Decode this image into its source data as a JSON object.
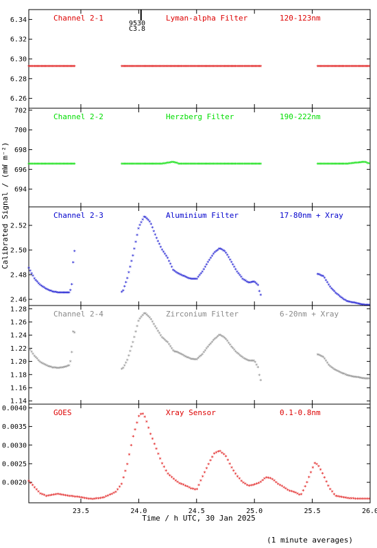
{
  "chart_data": {
    "type": "scatter",
    "xlabel": "Time / h UTC, 30 Jan 2025",
    "ylabel": "Calibrated Signal / (mW m⁻²)",
    "footnote": "(1 minute averages)",
    "xlim": [
      23.05,
      26.0
    ],
    "xticks": [
      "23.5",
      "24.0",
      "24.5",
      "25.0",
      "25.5",
      "26.0"
    ],
    "top_annotation": [
      "9530",
      "C3.8"
    ],
    "panels": [
      {
        "name": "Channel 2-1",
        "filter": "Lyman-alpha Filter",
        "band": "120-123nm",
        "color": "#dd0000",
        "ylim": [
          6.25,
          6.35
        ],
        "yticks": [
          "6.26",
          "6.28",
          "6.30",
          "6.32",
          "6.34"
        ],
        "points": [
          [
            23.05,
            6.292
          ],
          [
            23.2,
            6.292
          ],
          [
            23.35,
            6.292
          ],
          [
            23.43,
            6.292
          ],
          [
            23.86,
            6.292
          ],
          [
            24.2,
            6.292
          ],
          [
            24.5,
            6.292
          ],
          [
            24.8,
            6.292
          ],
          [
            25.05,
            6.292
          ],
          [
            25.55,
            6.292
          ],
          [
            25.8,
            6.292
          ],
          [
            26.0,
            6.292
          ]
        ]
      },
      {
        "name": "Channel 2-2",
        "filter": "Herzberg Filter",
        "band": "190-222nm",
        "color": "#00dd00",
        "ylim": [
          692.2,
          702.2
        ],
        "yticks": [
          "694",
          "696",
          "698",
          "700",
          "702"
        ],
        "points": [
          [
            23.05,
            696.5
          ],
          [
            23.2,
            696.5
          ],
          [
            23.35,
            696.5
          ],
          [
            23.43,
            696.5
          ],
          [
            23.86,
            696.5
          ],
          [
            24.2,
            696.5
          ],
          [
            24.3,
            696.7
          ],
          [
            24.35,
            696.5
          ],
          [
            24.6,
            696.5
          ],
          [
            24.9,
            696.5
          ],
          [
            25.05,
            696.5
          ],
          [
            25.55,
            696.5
          ],
          [
            25.8,
            696.5
          ],
          [
            25.95,
            696.7
          ],
          [
            26.0,
            696.5
          ]
        ]
      },
      {
        "name": "Channel 2-3",
        "filter": "Aluminium Filter",
        "band": "17-80nm + Xray",
        "color": "#0000cc",
        "ylim": [
          2.455,
          2.535
        ],
        "yticks": [
          "2.46",
          "2.48",
          "2.50",
          "2.52"
        ],
        "points": [
          [
            23.05,
            2.485
          ],
          [
            23.1,
            2.476
          ],
          [
            23.15,
            2.471
          ],
          [
            23.2,
            2.468
          ],
          [
            23.25,
            2.466
          ],
          [
            23.3,
            2.465
          ],
          [
            23.35,
            2.465
          ],
          [
            23.4,
            2.465
          ],
          [
            23.42,
            2.469
          ],
          [
            23.43,
            2.483
          ],
          [
            23.44,
            2.499
          ],
          [
            23.86,
            2.465
          ],
          [
            23.9,
            2.476
          ],
          [
            23.95,
            2.495
          ],
          [
            24.0,
            2.518
          ],
          [
            24.05,
            2.527
          ],
          [
            24.1,
            2.522
          ],
          [
            24.15,
            2.51
          ],
          [
            24.2,
            2.5
          ],
          [
            24.25,
            2.493
          ],
          [
            24.3,
            2.483
          ],
          [
            24.35,
            2.48
          ],
          [
            24.4,
            2.478
          ],
          [
            24.45,
            2.476
          ],
          [
            24.5,
            2.476
          ],
          [
            24.55,
            2.482
          ],
          [
            24.6,
            2.49
          ],
          [
            24.65,
            2.497
          ],
          [
            24.7,
            2.501
          ],
          [
            24.75,
            2.498
          ],
          [
            24.8,
            2.49
          ],
          [
            24.85,
            2.482
          ],
          [
            24.9,
            2.476
          ],
          [
            24.95,
            2.473
          ],
          [
            25.0,
            2.474
          ],
          [
            25.03,
            2.471
          ],
          [
            25.05,
            2.463
          ],
          [
            25.55,
            2.48
          ],
          [
            25.6,
            2.478
          ],
          [
            25.65,
            2.47
          ],
          [
            25.7,
            2.465
          ],
          [
            25.75,
            2.461
          ],
          [
            25.8,
            2.458
          ],
          [
            25.85,
            2.457
          ],
          [
            25.9,
            2.456
          ],
          [
            25.95,
            2.455
          ],
          [
            26.0,
            2.455
          ]
        ]
      },
      {
        "name": "Channel 2-4",
        "filter": "Zirconium Filter",
        "band": "6-20nm + Xray",
        "color": "#888888",
        "ylim": [
          1.135,
          1.285
        ],
        "yticks": [
          "1.14",
          "1.16",
          "1.18",
          "1.20",
          "1.22",
          "1.24",
          "1.26",
          "1.28"
        ],
        "points": [
          [
            23.05,
            1.22
          ],
          [
            23.1,
            1.207
          ],
          [
            23.15,
            1.198
          ],
          [
            23.2,
            1.193
          ],
          [
            23.25,
            1.19
          ],
          [
            23.3,
            1.189
          ],
          [
            23.35,
            1.19
          ],
          [
            23.4,
            1.193
          ],
          [
            23.42,
            1.205
          ],
          [
            23.43,
            1.245
          ],
          [
            23.86,
            1.187
          ],
          [
            23.9,
            1.2
          ],
          [
            23.95,
            1.228
          ],
          [
            24.0,
            1.262
          ],
          [
            24.05,
            1.273
          ],
          [
            24.1,
            1.265
          ],
          [
            24.15,
            1.25
          ],
          [
            24.2,
            1.236
          ],
          [
            24.25,
            1.228
          ],
          [
            24.3,
            1.215
          ],
          [
            24.35,
            1.212
          ],
          [
            24.4,
            1.207
          ],
          [
            24.45,
            1.203
          ],
          [
            24.5,
            1.202
          ],
          [
            24.55,
            1.21
          ],
          [
            24.6,
            1.222
          ],
          [
            24.65,
            1.232
          ],
          [
            24.7,
            1.24
          ],
          [
            24.75,
            1.234
          ],
          [
            24.8,
            1.222
          ],
          [
            24.85,
            1.212
          ],
          [
            24.9,
            1.205
          ],
          [
            24.95,
            1.2
          ],
          [
            25.0,
            1.2
          ],
          [
            25.03,
            1.19
          ],
          [
            25.05,
            1.17
          ],
          [
            25.55,
            1.21
          ],
          [
            25.6,
            1.205
          ],
          [
            25.65,
            1.192
          ],
          [
            25.7,
            1.186
          ],
          [
            25.75,
            1.182
          ],
          [
            25.8,
            1.178
          ],
          [
            25.85,
            1.176
          ],
          [
            25.9,
            1.175
          ],
          [
            25.95,
            1.173
          ],
          [
            26.0,
            1.173
          ]
        ]
      },
      {
        "name": "GOES",
        "filter": "Xray Sensor",
        "band": "0.1-0.8nm",
        "color": "#dd0000",
        "ylim": [
          0.00145,
          0.0041
        ],
        "yticks": [
          "0.0020",
          "0.0025",
          "0.0030",
          "0.0035",
          "0.0040"
        ],
        "points": [
          [
            23.05,
            0.00202
          ],
          [
            23.1,
            0.00185
          ],
          [
            23.15,
            0.00168
          ],
          [
            23.2,
            0.00162
          ],
          [
            23.3,
            0.00167
          ],
          [
            23.4,
            0.00162
          ],
          [
            23.5,
            0.00158
          ],
          [
            23.6,
            0.00153
          ],
          [
            23.7,
            0.00158
          ],
          [
            23.8,
            0.00172
          ],
          [
            23.85,
            0.00192
          ],
          [
            23.9,
            0.00245
          ],
          [
            23.95,
            0.0032
          ],
          [
            24.0,
            0.00375
          ],
          [
            24.03,
            0.00385
          ],
          [
            24.06,
            0.0037
          ],
          [
            24.1,
            0.0033
          ],
          [
            24.15,
            0.0029
          ],
          [
            24.2,
            0.0025
          ],
          [
            24.25,
            0.00222
          ],
          [
            24.3,
            0.00208
          ],
          [
            24.35,
            0.00196
          ],
          [
            24.4,
            0.0019
          ],
          [
            24.45,
            0.00182
          ],
          [
            24.5,
            0.00178
          ],
          [
            24.55,
            0.00212
          ],
          [
            24.6,
            0.00245
          ],
          [
            24.65,
            0.00275
          ],
          [
            24.7,
            0.00283
          ],
          [
            24.75,
            0.0027
          ],
          [
            24.8,
            0.0024
          ],
          [
            24.85,
            0.00215
          ],
          [
            24.9,
            0.00198
          ],
          [
            24.95,
            0.00189
          ],
          [
            25.0,
            0.00192
          ],
          [
            25.05,
            0.00198
          ],
          [
            25.1,
            0.00212
          ],
          [
            25.15,
            0.00208
          ],
          [
            25.2,
            0.00195
          ],
          [
            25.3,
            0.00176
          ],
          [
            25.35,
            0.00172
          ],
          [
            25.4,
            0.00163
          ],
          [
            25.45,
            0.00195
          ],
          [
            25.52,
            0.0025
          ],
          [
            25.55,
            0.00245
          ],
          [
            25.6,
            0.00215
          ],
          [
            25.65,
            0.00182
          ],
          [
            25.7,
            0.00162
          ],
          [
            25.8,
            0.00156
          ],
          [
            25.9,
            0.00154
          ],
          [
            26.0,
            0.00154
          ]
        ]
      }
    ]
  }
}
